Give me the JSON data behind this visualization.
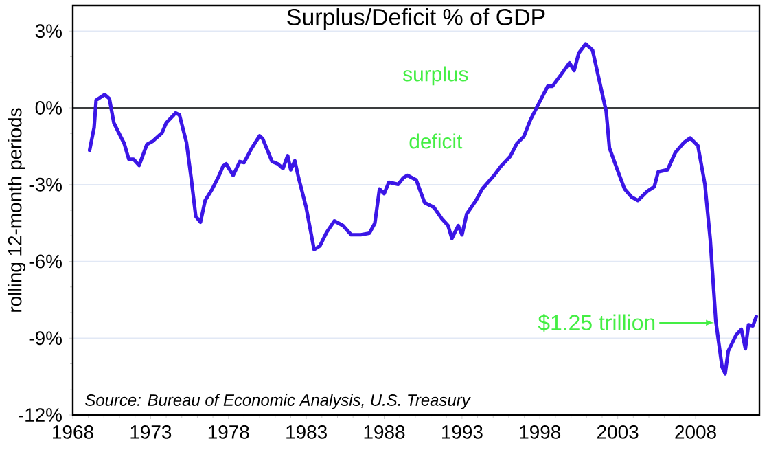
{
  "chart_data": {
    "type": "line",
    "title": "Surplus/Deficit % of GDP",
    "ylabel": "rolling 12-month periods",
    "x": [
      1969.08,
      1969.37,
      1969.5,
      1970.05,
      1970.35,
      1970.64,
      1971.0,
      1971.3,
      1971.6,
      1971.9,
      1972.26,
      1972.76,
      1973.14,
      1973.73,
      1974.0,
      1974.6,
      1974.85,
      1975.3,
      1975.6,
      1975.9,
      1976.2,
      1976.5,
      1976.96,
      1977.4,
      1977.65,
      1977.85,
      1978.3,
      1978.73,
      1979.0,
      1979.47,
      1980.0,
      1980.2,
      1980.8,
      1981.17,
      1981.5,
      1981.8,
      1982.0,
      1982.26,
      1982.5,
      1982.99,
      1983.5,
      1983.87,
      1984.3,
      1984.8,
      1985.35,
      1985.88,
      1986.5,
      1987.05,
      1987.4,
      1987.7,
      1988.0,
      1988.3,
      1988.9,
      1989.24,
      1989.5,
      1990.06,
      1990.6,
      1991.2,
      1991.7,
      1992.1,
      1992.35,
      1992.76,
      1993.0,
      1993.3,
      1993.9,
      1994.3,
      1995.06,
      1995.5,
      1996.1,
      1996.53,
      1996.97,
      1997.4,
      1998.0,
      1998.5,
      1998.8,
      1999.3,
      1999.9,
      2000.2,
      2000.5,
      2000.94,
      2001.38,
      2001.8,
      2002.26,
      2002.47,
      2003.0,
      2003.44,
      2003.9,
      2004.3,
      2004.9,
      2005.35,
      2005.6,
      2006.2,
      2006.7,
      2007.26,
      2007.65,
      2008.15,
      2008.6,
      2008.94,
      2009.3,
      2009.7,
      2009.9,
      2010.1,
      2010.6,
      2010.94,
      2011.2,
      2011.4,
      2011.68,
      2011.9
    ],
    "series": [
      {
        "color": "#3b16e6",
        "values": [
          -1.66,
          -0.77,
          0.3,
          0.52,
          0.36,
          -0.59,
          -1.03,
          -1.39,
          -2.01,
          -2.01,
          -2.25,
          -1.43,
          -1.3,
          -0.98,
          -0.59,
          -0.2,
          -0.27,
          -1.35,
          -2.73,
          -4.24,
          -4.47,
          -3.62,
          -3.17,
          -2.64,
          -2.28,
          -2.19,
          -2.64,
          -2.1,
          -2.14,
          -1.6,
          -1.09,
          -1.21,
          -2.1,
          -2.19,
          -2.37,
          -1.87,
          -2.42,
          -2.07,
          -2.73,
          -3.89,
          -5.54,
          -5.4,
          -4.87,
          -4.42,
          -4.6,
          -4.96,
          -4.96,
          -4.9,
          -4.51,
          -3.17,
          -3.35,
          -2.91,
          -2.99,
          -2.73,
          -2.64,
          -2.82,
          -3.71,
          -3.89,
          -4.33,
          -4.6,
          -5.1,
          -4.6,
          -4.96,
          -4.15,
          -3.62,
          -3.17,
          -2.64,
          -2.28,
          -1.89,
          -1.39,
          -1.12,
          -0.46,
          0.25,
          0.84,
          0.84,
          1.25,
          1.76,
          1.46,
          2.14,
          2.5,
          2.26,
          1.11,
          -0.14,
          -1.57,
          -2.46,
          -3.17,
          -3.49,
          -3.62,
          -3.26,
          -3.08,
          -2.5,
          -2.42,
          -1.75,
          -1.35,
          -1.18,
          -1.48,
          -2.99,
          -5.13,
          -8.34,
          -10.12,
          -10.39,
          -9.5,
          -8.88,
          -8.66,
          -9.41,
          -8.48,
          -8.52,
          -8.16
        ]
      }
    ],
    "xlim": [
      1968,
      2012.1
    ],
    "ylim": [
      -12,
      4
    ],
    "xticks": [
      1968,
      1973,
      1978,
      1983,
      1988,
      1993,
      1998,
      2003,
      2008
    ],
    "yticks": [
      {
        "value": 3,
        "label": "3%"
      },
      {
        "value": 0,
        "label": "0%"
      },
      {
        "value": -3,
        "label": "-3%"
      },
      {
        "value": -6,
        "label": "-6%"
      },
      {
        "value": -9,
        "label": "-9%"
      },
      {
        "value": -12,
        "label": "-12%"
      }
    ],
    "grid": "y",
    "marker": "none",
    "line_style": "solid",
    "ref_lines": [
      {
        "axis": "y",
        "value": 0,
        "color": "#000000"
      }
    ],
    "annotations": [
      "surplus",
      "deficit",
      {
        "text": "$1.25 trillion",
        "x": 2009.2,
        "y": -8.4
      },
      "Source:  Bureau of Economic Analysis, U.S. Treasury"
    ]
  }
}
